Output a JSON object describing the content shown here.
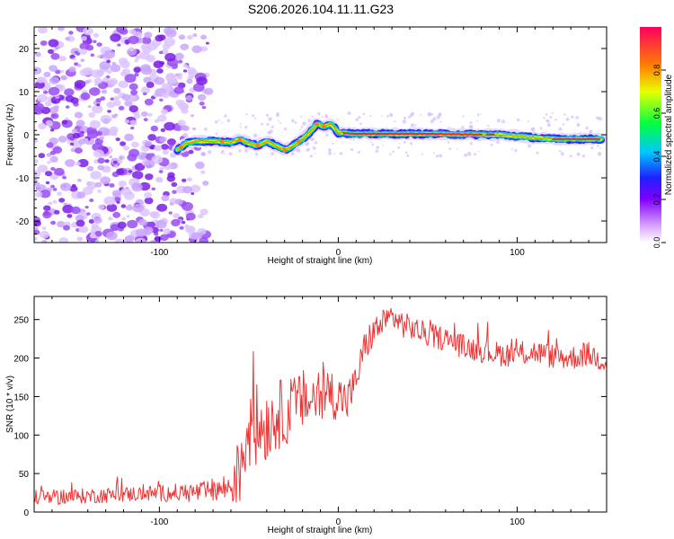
{
  "figure": {
    "title": "S206.2026.104.11.11.G23"
  },
  "chart_data": [
    {
      "type": "heatmap",
      "name": "spectrogram",
      "xlabel": "Height of straight line (km)",
      "ylabel": "Frequency (Hz)",
      "xlim": [
        -170,
        150
      ],
      "ylim": [
        -25,
        25
      ],
      "x_ticks": [
        -100,
        0,
        100
      ],
      "y_ticks": [
        -20,
        -10,
        0,
        10,
        20
      ],
      "colorbar": {
        "label": "Normalized spectral amplitude",
        "range": [
          0,
          1
        ],
        "ticks": [
          0.0,
          0.2,
          0.4,
          0.6,
          0.8
        ],
        "tick_labels": [
          "0.0",
          "0.2",
          "0.4",
          "0.6",
          "0.8"
        ],
        "colors": [
          "#ffffff",
          "#b000ff",
          "#2000ff",
          "#00c8ff",
          "#00ff40",
          "#e8ff00",
          "#ff8000",
          "#ff0060"
        ]
      },
      "signal_track": [
        {
          "x": -90,
          "y": -3.5
        },
        {
          "x": -85,
          "y": -2.0
        },
        {
          "x": -80,
          "y": -1.5
        },
        {
          "x": -70,
          "y": -1.5
        },
        {
          "x": -60,
          "y": -1.8
        },
        {
          "x": -55,
          "y": -1.0
        },
        {
          "x": -50,
          "y": -2.0
        },
        {
          "x": -45,
          "y": -2.5
        },
        {
          "x": -40,
          "y": -1.5
        },
        {
          "x": -35,
          "y": -2.5
        },
        {
          "x": -30,
          "y": -3.5
        },
        {
          "x": -25,
          "y": -2.5
        },
        {
          "x": -20,
          "y": -1.0
        },
        {
          "x": -15,
          "y": 1.0
        },
        {
          "x": -12,
          "y": 2.5
        },
        {
          "x": -8,
          "y": 2.0
        },
        {
          "x": -4,
          "y": 2.5
        },
        {
          "x": 0,
          "y": 0.5
        },
        {
          "x": 10,
          "y": 0.2
        },
        {
          "x": 50,
          "y": 0.2
        },
        {
          "x": 90,
          "y": 0.0
        },
        {
          "x": 120,
          "y": -1.0
        },
        {
          "x": 147,
          "y": -1.0
        }
      ],
      "noise_region_xlim": [
        -170,
        -72
      ]
    },
    {
      "type": "line",
      "name": "snr",
      "xlabel": "Height of straight line (km)",
      "ylabel": "SNR (10 * v/v)",
      "xlim": [
        -170,
        150
      ],
      "ylim": [
        0,
        280
      ],
      "x_ticks": [
        -100,
        0,
        100
      ],
      "y_ticks": [
        0,
        50,
        100,
        150,
        200,
        250
      ],
      "color": "#ee3333",
      "series": [
        {
          "name": "SNR",
          "x": [
            -170,
            -150,
            -130,
            -110,
            -90,
            -75,
            -65,
            -58,
            -55,
            -52,
            -48,
            -45,
            -40,
            -35,
            -30,
            -25,
            -20,
            -15,
            -10,
            -5,
            0,
            5,
            10,
            12,
            15,
            20,
            25,
            28,
            30,
            35,
            40,
            50,
            60,
            70,
            80,
            90,
            100,
            110,
            120,
            130,
            140,
            150
          ],
          "y": [
            18,
            20,
            22,
            24,
            25,
            26,
            30,
            35,
            60,
            100,
            120,
            110,
            115,
            125,
            130,
            135,
            145,
            145,
            150,
            155,
            150,
            145,
            170,
            190,
            215,
            235,
            245,
            250,
            255,
            245,
            240,
            230,
            225,
            215,
            210,
            205,
            205,
            208,
            202,
            200,
            205,
            195
          ],
          "spread": [
            10,
            10,
            10,
            10,
            12,
            14,
            18,
            25,
            60,
            65,
            60,
            55,
            50,
            45,
            45,
            42,
            40,
            40,
            38,
            35,
            30,
            28,
            20,
            22,
            22,
            20,
            18,
            18,
            18,
            18,
            16,
            16,
            16,
            16,
            16,
            16,
            16,
            16,
            16,
            16,
            16,
            16
          ]
        }
      ]
    }
  ]
}
